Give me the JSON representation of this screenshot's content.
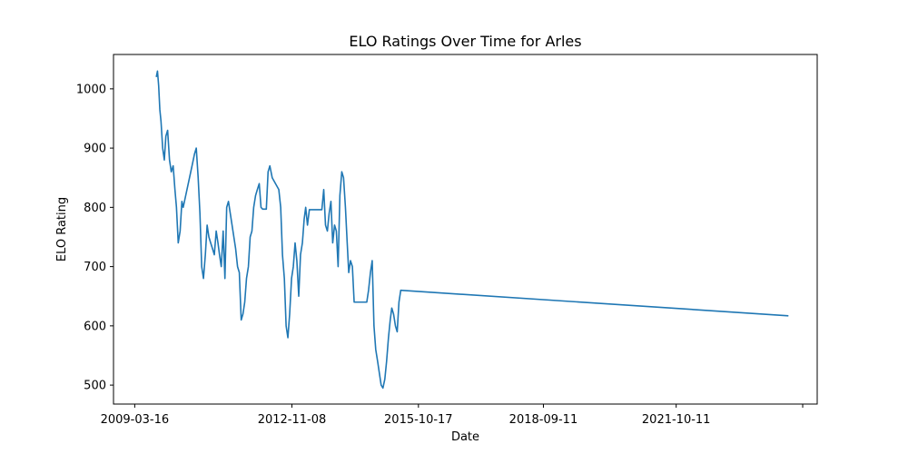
{
  "chart_data": {
    "type": "line",
    "title": "ELO Ratings Over Time for Arles",
    "xlabel": "Date",
    "ylabel": "ELO Rating",
    "x_tick_labels": [
      "2009-03-16",
      "2012-11-08",
      "2015-10-17",
      "2018-09-11",
      "2021-10-11",
      ""
    ],
    "x_tick_values": [
      "2009-03-16",
      "2012-11-08",
      "2015-10-17",
      "2018-09-11",
      "2021-10-11",
      "2024-09-18"
    ],
    "y_ticks": [
      500,
      600,
      700,
      800,
      900,
      1000
    ],
    "xlim": [
      "2008-09-17",
      "2025-01-19"
    ],
    "ylim": [
      468,
      1058
    ],
    "grid": false,
    "line_color": "#1f77b4",
    "series": [
      {
        "x": [
          "2009-09-15",
          "2009-09-25",
          "2009-10-05",
          "2009-10-15",
          "2009-10-25",
          "2009-11-08",
          "2009-11-22",
          "2009-12-05",
          "2009-12-20",
          "2010-01-05",
          "2010-01-20",
          "2010-02-05",
          "2010-02-20",
          "2010-03-05",
          "2010-03-20",
          "2010-04-05",
          "2010-04-20",
          "2010-05-01",
          "2010-07-15",
          "2010-08-05",
          "2010-08-20",
          "2010-09-05",
          "2010-09-20",
          "2010-10-05",
          "2010-10-20",
          "2010-11-05",
          "2010-11-20",
          "2010-12-05",
          "2010-12-20",
          "2011-01-05",
          "2011-01-20",
          "2011-02-05",
          "2011-02-20",
          "2011-03-05",
          "2011-03-20",
          "2011-04-05",
          "2011-04-20",
          "2011-05-05",
          "2011-05-20",
          "2011-07-20",
          "2011-08-05",
          "2011-08-20",
          "2011-09-05",
          "2011-09-20",
          "2011-10-05",
          "2011-10-20",
          "2011-11-05",
          "2011-11-20",
          "2011-12-05",
          "2011-12-20",
          "2012-01-05",
          "2012-01-20",
          "2012-02-05",
          "2012-02-20",
          "2012-03-05",
          "2012-03-20",
          "2012-04-05",
          "2012-04-20",
          "2012-05-05",
          "2012-05-25",
          "2012-07-20",
          "2012-08-05",
          "2012-08-20",
          "2012-09-05",
          "2012-09-20",
          "2012-10-05",
          "2012-10-20",
          "2012-11-05",
          "2012-11-20",
          "2012-12-05",
          "2012-12-20",
          "2013-01-05",
          "2013-01-20",
          "2013-02-05",
          "2013-02-20",
          "2013-03-05",
          "2013-03-20",
          "2013-04-05",
          "2013-04-20",
          "2013-05-05",
          "2013-05-25",
          "2013-07-20",
          "2013-08-05",
          "2013-08-20",
          "2013-09-05",
          "2013-09-20",
          "2013-10-05",
          "2013-10-20",
          "2013-11-05",
          "2013-11-20",
          "2013-12-05",
          "2013-12-20",
          "2014-01-05",
          "2014-01-20",
          "2014-02-05",
          "2014-02-20",
          "2014-03-05",
          "2014-03-20",
          "2014-04-05",
          "2014-04-20",
          "2014-05-05",
          "2014-05-20",
          "2014-07-20",
          "2014-08-05",
          "2014-08-20",
          "2014-09-05",
          "2014-09-20",
          "2014-10-05",
          "2014-10-20",
          "2014-11-05",
          "2014-11-20",
          "2014-12-05",
          "2014-12-20",
          "2015-01-05",
          "2015-01-20",
          "2015-02-05",
          "2015-02-20",
          "2015-03-05",
          "2015-03-20",
          "2015-04-05",
          "2015-04-20",
          "2015-05-05",
          "2015-05-20",
          "2024-05-20"
        ],
        "y": [
          1020,
          1030,
          1005,
          965,
          945,
          900,
          880,
          920,
          930,
          880,
          860,
          870,
          830,
          800,
          740,
          760,
          810,
          800,
          870,
          890,
          900,
          850,
          790,
          700,
          680,
          720,
          770,
          750,
          740,
          730,
          720,
          760,
          740,
          720,
          700,
          760,
          680,
          800,
          810,
          730,
          700,
          690,
          610,
          620,
          640,
          680,
          700,
          750,
          760,
          800,
          820,
          830,
          840,
          800,
          797,
          797,
          797,
          860,
          870,
          850,
          830,
          800,
          720,
          680,
          600,
          580,
          620,
          680,
          700,
          740,
          710,
          650,
          720,
          740,
          780,
          800,
          770,
          796,
          796,
          796,
          796,
          796,
          830,
          770,
          760,
          790,
          810,
          740,
          770,
          760,
          700,
          820,
          860,
          850,
          800,
          740,
          690,
          710,
          700,
          640,
          640,
          640,
          640,
          640,
          660,
          690,
          710,
          600,
          560,
          540,
          520,
          500,
          495,
          510,
          540,
          580,
          610,
          630,
          620,
          600,
          590,
          640,
          660,
          617
        ]
      }
    ]
  }
}
